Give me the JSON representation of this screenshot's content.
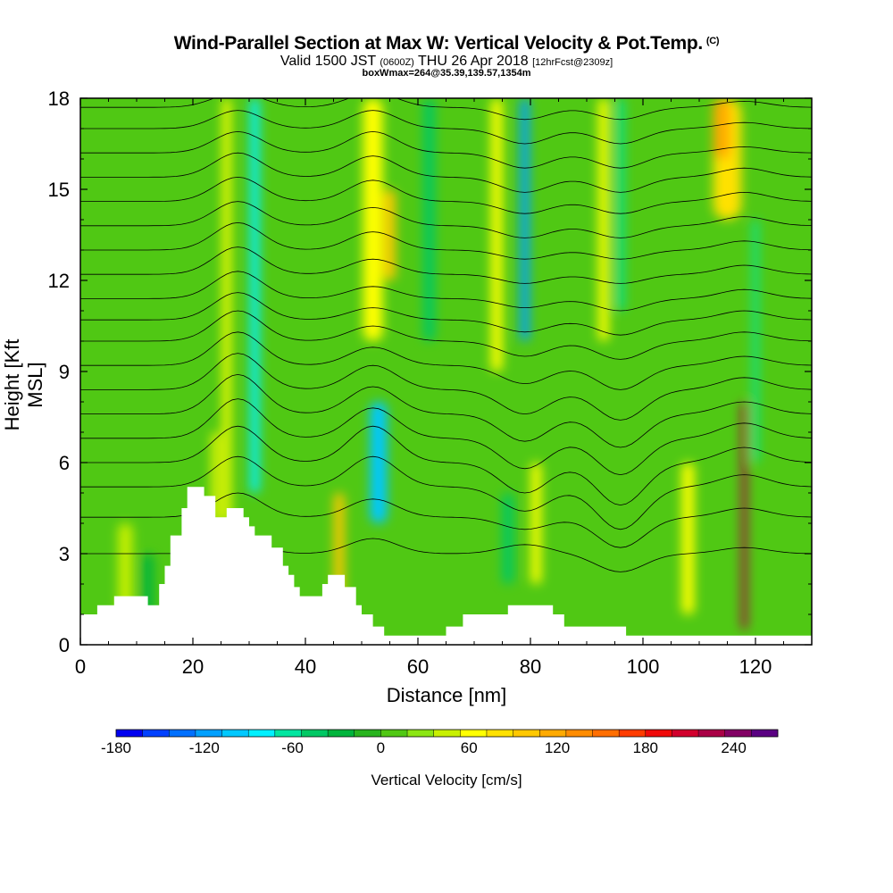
{
  "title": "Wind-Parallel Section at Max W: Vertical Velocity & Pot.Temp.",
  "title_mark": "(C)",
  "subtitle_main": "Valid 1500 JST",
  "subtitle_z": "(0600Z)",
  "subtitle_date": "THU 26 Apr 2018",
  "subtitle_fcst": "[12hrFcst@2309z]",
  "subtitle3": "boxWmax=264@35.39,139.57,1354m",
  "chart_data": {
    "type": "heatmap",
    "xlabel": "Distance [nm]",
    "ylabel": "Height [Kft MSL]",
    "xlim": [
      0,
      130
    ],
    "ylim": [
      0,
      18
    ],
    "x_ticks": [
      0,
      20,
      40,
      60,
      80,
      100,
      120
    ],
    "y_ticks": [
      0,
      3,
      6,
      9,
      12,
      15,
      18
    ],
    "colorbar_label": "Vertical Velocity [cm/s]",
    "colorbar_ticks": [
      -180,
      -120,
      -60,
      0,
      60,
      120,
      180,
      240
    ],
    "colorbar_range": [
      -180,
      270
    ],
    "colorbar_colors": [
      "#0000f0",
      "#0040ff",
      "#0070ff",
      "#00a0ff",
      "#00c8ff",
      "#00f0ff",
      "#00e6a0",
      "#00c864",
      "#00b43c",
      "#28b41e",
      "#50c814",
      "#8ce614",
      "#c8f000",
      "#ffff00",
      "#ffe100",
      "#ffc800",
      "#ffaa00",
      "#ff8c00",
      "#ff6e00",
      "#ff3c00",
      "#f00a0a",
      "#d2002d",
      "#aa0046",
      "#820064",
      "#5a0082"
    ],
    "bands": [
      {
        "x": 26,
        "y0": 4,
        "y1": 18,
        "w": 1.4,
        "value": 60
      },
      {
        "x": 31,
        "y0": 5,
        "y1": 18,
        "w": 1.6,
        "value": -90
      },
      {
        "x": 24,
        "y0": 4,
        "y1": 7,
        "w": 1.2,
        "value": 70
      },
      {
        "x": 46,
        "y0": 1,
        "y1": 5,
        "w": 1.8,
        "value": 90
      },
      {
        "x": 53,
        "y0": 4,
        "y1": 8,
        "w": 3.0,
        "value": -100
      },
      {
        "x": 52,
        "y0": 10,
        "y1": 18,
        "w": 3.5,
        "value": 70
      },
      {
        "x": 55,
        "y0": 12,
        "y1": 15,
        "w": 2.0,
        "value": 90
      },
      {
        "x": 62,
        "y0": 10,
        "y1": 18,
        "w": 2.0,
        "value": -50
      },
      {
        "x": 74,
        "y0": 9,
        "y1": 18,
        "w": 2.0,
        "value": 55
      },
      {
        "x": 79,
        "y0": 10,
        "y1": 18,
        "w": 1.6,
        "value": -110
      },
      {
        "x": 76,
        "y0": 2,
        "y1": 5,
        "w": 2.0,
        "value": -40
      },
      {
        "x": 81,
        "y0": 2,
        "y1": 6,
        "w": 1.8,
        "value": 70
      },
      {
        "x": 93,
        "y0": 10,
        "y1": 18,
        "w": 1.8,
        "value": 60
      },
      {
        "x": 96,
        "y0": 11,
        "y1": 18,
        "w": 1.2,
        "value": -60
      },
      {
        "x": 108,
        "y0": 1,
        "y1": 6,
        "w": 2.2,
        "value": 60
      },
      {
        "x": 115,
        "y0": 14,
        "y1": 18,
        "w": 5.0,
        "value": 80
      },
      {
        "x": 114,
        "y0": 16,
        "y1": 18,
        "w": 3.0,
        "value": 120
      },
      {
        "x": 118,
        "y0": 0.5,
        "y1": 8,
        "w": 1.0,
        "value": 230
      },
      {
        "x": 120,
        "y0": 6,
        "y1": 14,
        "w": 1.0,
        "value": -60
      },
      {
        "x": 8,
        "y0": 1,
        "y1": 4,
        "w": 2.5,
        "value": 40
      },
      {
        "x": 12,
        "y0": 1,
        "y1": 3,
        "w": 2.0,
        "value": -20
      }
    ],
    "terrain": [
      {
        "x": 0,
        "y": 1.0
      },
      {
        "x": 3,
        "y": 1.0
      },
      {
        "x": 3,
        "y": 1.3
      },
      {
        "x": 6,
        "y": 1.3
      },
      {
        "x": 6,
        "y": 1.6
      },
      {
        "x": 12,
        "y": 1.6
      },
      {
        "x": 12,
        "y": 1.3
      },
      {
        "x": 14,
        "y": 1.3
      },
      {
        "x": 14,
        "y": 2.0
      },
      {
        "x": 15,
        "y": 2.0
      },
      {
        "x": 15,
        "y": 2.6
      },
      {
        "x": 16,
        "y": 2.6
      },
      {
        "x": 16,
        "y": 3.6
      },
      {
        "x": 18,
        "y": 3.6
      },
      {
        "x": 18,
        "y": 4.5
      },
      {
        "x": 19,
        "y": 4.5
      },
      {
        "x": 19,
        "y": 5.2
      },
      {
        "x": 22,
        "y": 5.2
      },
      {
        "x": 22,
        "y": 4.9
      },
      {
        "x": 24,
        "y": 4.9
      },
      {
        "x": 24,
        "y": 4.2
      },
      {
        "x": 26,
        "y": 4.2
      },
      {
        "x": 26,
        "y": 4.5
      },
      {
        "x": 29,
        "y": 4.5
      },
      {
        "x": 29,
        "y": 4.2
      },
      {
        "x": 30,
        "y": 4.2
      },
      {
        "x": 30,
        "y": 3.9
      },
      {
        "x": 31,
        "y": 3.9
      },
      {
        "x": 31,
        "y": 3.6
      },
      {
        "x": 34,
        "y": 3.6
      },
      {
        "x": 34,
        "y": 3.2
      },
      {
        "x": 36,
        "y": 3.2
      },
      {
        "x": 36,
        "y": 2.6
      },
      {
        "x": 37,
        "y": 2.6
      },
      {
        "x": 37,
        "y": 2.3
      },
      {
        "x": 38,
        "y": 2.3
      },
      {
        "x": 38,
        "y": 1.9
      },
      {
        "x": 39,
        "y": 1.9
      },
      {
        "x": 39,
        "y": 1.6
      },
      {
        "x": 43,
        "y": 1.6
      },
      {
        "x": 43,
        "y": 2.0
      },
      {
        "x": 44,
        "y": 2.0
      },
      {
        "x": 44,
        "y": 2.3
      },
      {
        "x": 47,
        "y": 2.3
      },
      {
        "x": 47,
        "y": 1.9
      },
      {
        "x": 49,
        "y": 1.9
      },
      {
        "x": 49,
        "y": 1.3
      },
      {
        "x": 50,
        "y": 1.3
      },
      {
        "x": 50,
        "y": 1.0
      },
      {
        "x": 52,
        "y": 1.0
      },
      {
        "x": 52,
        "y": 0.6
      },
      {
        "x": 54,
        "y": 0.6
      },
      {
        "x": 54,
        "y": 0.3
      },
      {
        "x": 65,
        "y": 0.3
      },
      {
        "x": 65,
        "y": 0.6
      },
      {
        "x": 68,
        "y": 0.6
      },
      {
        "x": 68,
        "y": 1.0
      },
      {
        "x": 76,
        "y": 1.0
      },
      {
        "x": 76,
        "y": 1.3
      },
      {
        "x": 84,
        "y": 1.3
      },
      {
        "x": 84,
        "y": 1.0
      },
      {
        "x": 86,
        "y": 1.0
      },
      {
        "x": 86,
        "y": 0.6
      },
      {
        "x": 97,
        "y": 0.6
      },
      {
        "x": 97,
        "y": 0.3
      },
      {
        "x": 130,
        "y": 0.3
      }
    ],
    "isentropes": [
      {
        "y0": 3.0,
        "amp": [
          0.4,
          0.5,
          0.3,
          -0.6,
          0.2
        ]
      },
      {
        "y0": 4.2,
        "amp": [
          0.8,
          0.6,
          -0.4,
          -1.0,
          0.3
        ]
      },
      {
        "y0": 5.2,
        "amp": [
          1.0,
          1.0,
          -0.8,
          -1.4,
          0.4
        ]
      },
      {
        "y0": 6.0,
        "amp": [
          1.2,
          1.2,
          -1.0,
          -1.4,
          0.5
        ]
      },
      {
        "y0": 6.8,
        "amp": [
          1.3,
          1.0,
          -1.0,
          -1.2,
          0.5
        ]
      },
      {
        "y0": 7.6,
        "amp": [
          1.3,
          0.9,
          -0.9,
          -1.1,
          0.4
        ]
      },
      {
        "y0": 8.4,
        "amp": [
          1.2,
          0.8,
          -0.8,
          -1.0,
          0.4
        ]
      },
      {
        "y0": 9.2,
        "amp": [
          1.1,
          0.6,
          -0.6,
          -0.8,
          0.3
        ]
      },
      {
        "y0": 10.0,
        "amp": [
          1.0,
          0.5,
          -0.5,
          -0.6,
          0.3
        ]
      },
      {
        "y0": 10.7,
        "amp": [
          0.9,
          0.4,
          -0.4,
          -0.5,
          0.3
        ]
      },
      {
        "y0": 11.4,
        "amp": [
          0.9,
          0.4,
          -0.3,
          -0.4,
          0.3
        ]
      },
      {
        "y0": 12.2,
        "amp": [
          0.9,
          0.5,
          -0.3,
          -0.3,
          0.3
        ]
      },
      {
        "y0": 13.0,
        "amp": [
          0.9,
          0.6,
          -0.3,
          -0.3,
          0.3
        ]
      },
      {
        "y0": 13.8,
        "amp": [
          0.8,
          0.6,
          -0.4,
          -0.4,
          0.3
        ]
      },
      {
        "y0": 14.6,
        "amp": [
          0.8,
          0.7,
          -0.4,
          -0.4,
          0.3
        ]
      },
      {
        "y0": 15.4,
        "amp": [
          0.8,
          0.7,
          -0.5,
          -0.5,
          0.3
        ]
      },
      {
        "y0": 16.2,
        "amp": [
          0.7,
          0.7,
          -0.5,
          -0.5,
          0.2
        ]
      },
      {
        "y0": 17.0,
        "amp": [
          0.6,
          0.6,
          -0.5,
          -0.5,
          0.2
        ]
      },
      {
        "y0": 17.7,
        "amp": [
          0.5,
          0.5,
          -0.4,
          -0.4,
          0.2
        ]
      }
    ]
  }
}
